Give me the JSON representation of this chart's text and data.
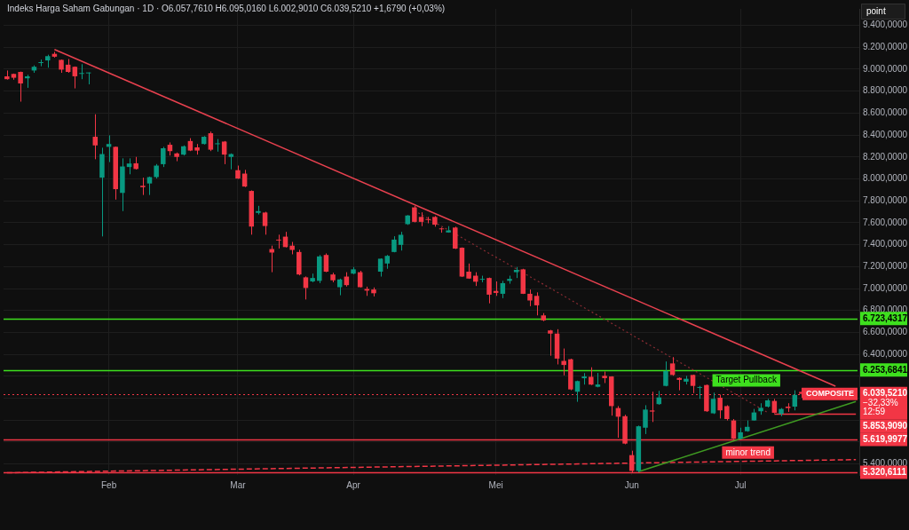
{
  "chart_data": {
    "type": "candlestick",
    "title": "Indeks Harga Saham Gabungan · 1D · O6.057,7610 H6.095,0160 L6.002,9010 C6.039,5210 +1,6790 (+0,03%)",
    "categories": [
      null,
      null,
      null,
      null,
      null,
      null,
      null,
      null,
      null,
      null,
      null,
      null,
      null,
      null,
      null,
      "Feb",
      null,
      null,
      null,
      null,
      null,
      null,
      null,
      null,
      null,
      null,
      null,
      null,
      null,
      null,
      null,
      null,
      null,
      null,
      "Mar",
      null,
      null,
      null,
      null,
      null,
      null,
      null,
      null,
      null,
      null,
      null,
      null,
      null,
      null,
      null,
      null,
      "Apr",
      null,
      null,
      null,
      null,
      null,
      null,
      null,
      null,
      null,
      null,
      null,
      null,
      null,
      null,
      null,
      null,
      null,
      null,
      null,
      null,
      "Mei",
      null,
      null,
      null,
      null,
      null,
      null,
      null,
      null,
      null,
      null,
      null,
      null,
      null,
      null,
      null,
      null,
      null,
      null,
      null,
      "Jun",
      null,
      null,
      null,
      null,
      null,
      null,
      null,
      null,
      null,
      null,
      null,
      null,
      null,
      null,
      null,
      "Jul",
      null,
      null,
      null,
      null,
      null,
      null,
      null,
      null,
      null,
      null,
      null,
      null,
      null,
      null,
      null,
      null,
      null
    ],
    "ohlc": [
      [
        8935,
        8988,
        8905,
        8909
      ],
      [
        8957,
        8960,
        8904,
        8922
      ],
      [
        8975,
        8978,
        8704,
        8870
      ],
      [
        8917,
        8949,
        8830,
        8935
      ],
      [
        8988,
        9035,
        8967,
        9022
      ],
      [
        9056,
        9088,
        9027,
        9062
      ],
      [
        9080,
        9132,
        9014,
        9119
      ],
      [
        9140,
        9158,
        9106,
        9114
      ],
      [
        9085,
        9088,
        8967,
        8996
      ],
      [
        9041,
        9093,
        8967,
        8975
      ],
      [
        9022,
        9025,
        8825,
        8935
      ],
      [
        8957,
        9046,
        8909,
        8962
      ],
      [
        8962,
        8970,
        8862,
        8967
      ],
      [
        8384,
        8589,
        8179,
        8305
      ],
      [
        8011,
        8284,
        7475,
        8226
      ],
      [
        8292,
        8397,
        8153,
        8318
      ],
      [
        8292,
        8295,
        7811,
        7906
      ],
      [
        7872,
        8187,
        7706,
        8113
      ],
      [
        8108,
        8187,
        8042,
        8140
      ],
      [
        8142,
        8200,
        8085,
        8090
      ],
      [
        7937,
        8011,
        7853,
        7924
      ],
      [
        7958,
        8021,
        7853,
        8016
      ],
      [
        8016,
        8135,
        8003,
        8121
      ],
      [
        8134,
        8292,
        8108,
        8279
      ],
      [
        8311,
        8332,
        8213,
        8253
      ],
      [
        8232,
        8240,
        8161,
        8200
      ],
      [
        8221,
        8305,
        8213,
        8297
      ],
      [
        8345,
        8371,
        8253,
        8258
      ],
      [
        8287,
        8318,
        8221,
        8258
      ],
      [
        8318,
        8390,
        8313,
        8384
      ],
      [
        8416,
        8431,
        8253,
        8266
      ],
      [
        8316,
        8363,
        8248,
        8320
      ],
      [
        8340,
        8345,
        8134,
        8221
      ],
      [
        8200,
        8232,
        8087,
        8226
      ],
      [
        8079,
        8121,
        8000,
        8003
      ],
      [
        8048,
        8082,
        7925,
        7930
      ],
      [
        7890,
        7895,
        7491,
        7565
      ],
      [
        7690,
        7754,
        7675,
        7706
      ],
      [
        7693,
        7700,
        7491,
        7570
      ],
      [
        7360,
        7391,
        7149,
        7328
      ],
      [
        7441,
        7491,
        7365,
        7438
      ],
      [
        7473,
        7517,
        7375,
        7378
      ],
      [
        7391,
        7425,
        7312,
        7352
      ],
      [
        7333,
        7354,
        7120,
        7128
      ],
      [
        7102,
        7110,
        6900,
        7005
      ],
      [
        7065,
        7136,
        7057,
        7096
      ],
      [
        7070,
        7306,
        7049,
        7293
      ],
      [
        7306,
        7320,
        7149,
        7154
      ],
      [
        7128,
        7144,
        7057,
        7075
      ],
      [
        7012,
        7090,
        6939,
        7083
      ],
      [
        7109,
        7149,
        7018,
        7031
      ],
      [
        7136,
        7196,
        7130,
        7175
      ],
      [
        7149,
        7162,
        7010,
        7012
      ],
      [
        6996,
        7017,
        6933,
        6981
      ],
      [
        6991,
        7010,
        6928,
        6957
      ],
      [
        7154,
        7275,
        7109,
        7272
      ],
      [
        7228,
        7306,
        7180,
        7298
      ],
      [
        7333,
        7477,
        7330,
        7446
      ],
      [
        7398,
        7517,
        7346,
        7490
      ],
      [
        7587,
        7670,
        7580,
        7666
      ],
      [
        7740,
        7753,
        7603,
        7608
      ],
      [
        7653,
        7695,
        7569,
        7608
      ],
      [
        7630,
        7653,
        7595,
        7625
      ],
      [
        7653,
        7661,
        7564,
        7582
      ],
      [
        7545,
        7556,
        7509,
        7540
      ],
      [
        7511,
        7569,
        7509,
        7530
      ],
      [
        7556,
        7564,
        7360,
        7364
      ],
      [
        7372,
        7375,
        7105,
        7109
      ],
      [
        7154,
        7228,
        7088,
        7091
      ],
      [
        7117,
        7149,
        7023,
        7062
      ],
      [
        7080,
        7117,
        7057,
        7088
      ],
      [
        7096,
        7100,
        6865,
        6944
      ],
      [
        6978,
        7065,
        6933,
        6960
      ],
      [
        6952,
        7070,
        6912,
        7049
      ],
      [
        7070,
        7117,
        7044,
        7088
      ],
      [
        7149,
        7196,
        7096,
        7170
      ],
      [
        7175,
        7180,
        6950,
        6952
      ],
      [
        6952,
        6991,
        6839,
        6891
      ],
      [
        6933,
        6965,
        6755,
        6847
      ],
      [
        6755,
        6776,
        6702,
        6710
      ],
      [
        6618,
        6623,
        6387,
        6589
      ],
      [
        6589,
        6629,
        6308,
        6361
      ],
      [
        6340,
        6453,
        6208,
        6303
      ],
      [
        6355,
        6360,
        6072,
        6080
      ],
      [
        6059,
        6160,
        5967,
        6156
      ],
      [
        6182,
        6229,
        6124,
        6198
      ],
      [
        6195,
        6282,
        6120,
        6124
      ],
      [
        6104,
        6230,
        6099,
        6125
      ],
      [
        6204,
        6243,
        6138,
        6183
      ],
      [
        6198,
        6200,
        5841,
        5928
      ],
      [
        5910,
        5928,
        5639,
        5831
      ],
      [
        5836,
        5849,
        5580,
        5586
      ],
      [
        5481,
        5521,
        5324,
        5337
      ],
      [
        5337,
        5750,
        5324,
        5744
      ],
      [
        5731,
        5936,
        5673,
        5896
      ],
      [
        5888,
        6059,
        5783,
        5878
      ],
      [
        5946,
        6067,
        5940,
        6007
      ],
      [
        6112,
        6335,
        6108,
        6248
      ],
      [
        6317,
        6375,
        6205,
        6212
      ],
      [
        6185,
        6190,
        6072,
        6167
      ],
      [
        6151,
        6204,
        6125,
        6177
      ],
      [
        6212,
        6215,
        6046,
        6112
      ],
      [
        6094,
        6112,
        5994,
        6099
      ],
      [
        6120,
        6125,
        5875,
        5881
      ],
      [
        5862,
        6051,
        5856,
        5994
      ],
      [
        6004,
        6033,
        5815,
        5889
      ],
      [
        5928,
        5936,
        5797,
        5810
      ],
      [
        5797,
        5810,
        5626,
        5631
      ],
      [
        5631,
        5731,
        5626,
        5689
      ],
      [
        5699,
        5797,
        5694,
        5739
      ],
      [
        5797,
        5902,
        5795,
        5870
      ],
      [
        5881,
        5954,
        5849,
        5912
      ],
      [
        5923,
        5994,
        5915,
        5980
      ],
      [
        5975,
        5994,
        5862,
        5867
      ],
      [
        5857,
        5910,
        5836,
        5902
      ],
      [
        5923,
        5954,
        5875,
        5910
      ],
      [
        5923,
        6072,
        5889,
        6030
      ],
      [
        6057.761,
        6095.016,
        6002.901,
        6039.521
      ],
      null,
      null,
      null,
      null,
      null,
      null,
      null,
      null
    ],
    "series": [
      {
        "type": "line",
        "color": "#e8414f",
        "values": [
          null,
          null,
          null,
          null,
          null,
          null,
          null,
          9180,
          null,
          null,
          null,
          null,
          null,
          null,
          null,
          null,
          null,
          null,
          null,
          null,
          null,
          null,
          null,
          null,
          null,
          null,
          null,
          null,
          null,
          null,
          null,
          null,
          null,
          null,
          null,
          null,
          null,
          null,
          null,
          null,
          null,
          null,
          null,
          null,
          null,
          null,
          null,
          null,
          null,
          null,
          null,
          null,
          null,
          null,
          null,
          null,
          null,
          null,
          null,
          null,
          null,
          null,
          null,
          null,
          null,
          null,
          null,
          null,
          null,
          null,
          null,
          null,
          null,
          null,
          null,
          null,
          null,
          null,
          null,
          null,
          null,
          null,
          null,
          null,
          null,
          null,
          null,
          null,
          null,
          null,
          null,
          null,
          null,
          null,
          null,
          null,
          null,
          null,
          null,
          null,
          null,
          null,
          null,
          null,
          null,
          null,
          null,
          null,
          null,
          null,
          null,
          null,
          null,
          null,
          null,
          null,
          null,
          null,
          null,
          null,
          null,
          null,
          6110,
          null,
          null,
          null
        ]
      },
      {
        "type": "line",
        "color": "#8a2c33",
        "line_style": "dotted",
        "values": [
          null,
          null,
          null,
          null,
          null,
          null,
          null,
          null,
          null,
          null,
          null,
          null,
          null,
          null,
          null,
          null,
          null,
          null,
          null,
          null,
          null,
          null,
          null,
          null,
          null,
          null,
          null,
          null,
          null,
          null,
          null,
          null,
          null,
          null,
          null,
          null,
          null,
          null,
          null,
          null,
          null,
          null,
          null,
          null,
          null,
          null,
          null,
          null,
          null,
          null,
          null,
          null,
          null,
          null,
          null,
          null,
          null,
          null,
          null,
          null,
          7710,
          null,
          null,
          null,
          null,
          null,
          null,
          null,
          null,
          null,
          null,
          null,
          null,
          null,
          null,
          null,
          null,
          null,
          null,
          null,
          null,
          null,
          null,
          null,
          null,
          null,
          null,
          null,
          null,
          null,
          null,
          null,
          null,
          null,
          null,
          null,
          null,
          null,
          null,
          null,
          null,
          null,
          null,
          null,
          null,
          null,
          null,
          null,
          null,
          null,
          null,
          null,
          5870,
          null,
          null,
          null,
          null,
          null,
          null,
          null,
          null,
          null,
          null,
          null,
          null,
          null
        ]
      },
      {
        "type": "line",
        "color": "#3f9a22",
        "values": [
          null,
          null,
          null,
          null,
          null,
          null,
          null,
          null,
          null,
          null,
          null,
          null,
          null,
          null,
          null,
          null,
          null,
          null,
          null,
          null,
          null,
          null,
          null,
          null,
          null,
          null,
          null,
          null,
          null,
          null,
          null,
          null,
          null,
          null,
          null,
          null,
          null,
          null,
          null,
          null,
          null,
          null,
          null,
          null,
          null,
          null,
          null,
          null,
          null,
          null,
          null,
          null,
          null,
          null,
          null,
          null,
          null,
          null,
          null,
          null,
          null,
          null,
          null,
          null,
          null,
          null,
          null,
          null,
          null,
          null,
          null,
          null,
          null,
          null,
          null,
          null,
          null,
          null,
          null,
          null,
          null,
          null,
          null,
          null,
          null,
          null,
          null,
          null,
          null,
          null,
          null,
          null,
          null,
          5330,
          null,
          null,
          null,
          null,
          null,
          null,
          null,
          null,
          null,
          null,
          null,
          null,
          null,
          null,
          null,
          null,
          null,
          null,
          null,
          null,
          null,
          null,
          null,
          null,
          null,
          null,
          null,
          null,
          null,
          null,
          null,
          5970
        ]
      },
      {
        "type": "line",
        "color": "#f23645",
        "line_style": "dashed",
        "values": [
          5320,
          null,
          null,
          null,
          null,
          null,
          null,
          null,
          null,
          null,
          null,
          null,
          null,
          null,
          null,
          null,
          null,
          null,
          null,
          null,
          null,
          null,
          null,
          null,
          null,
          null,
          null,
          null,
          null,
          null,
          null,
          null,
          null,
          null,
          null,
          null,
          null,
          null,
          null,
          null,
          null,
          null,
          null,
          null,
          null,
          null,
          null,
          null,
          null,
          null,
          null,
          null,
          null,
          null,
          null,
          null,
          null,
          null,
          null,
          null,
          null,
          null,
          null,
          null,
          null,
          null,
          null,
          null,
          null,
          null,
          null,
          null,
          null,
          null,
          null,
          null,
          null,
          null,
          null,
          null,
          null,
          null,
          null,
          null,
          null,
          null,
          null,
          null,
          null,
          null,
          null,
          null,
          null,
          null,
          null,
          null,
          null,
          null,
          null,
          null,
          null,
          null,
          null,
          null,
          null,
          null,
          null,
          null,
          null,
          null,
          null,
          null,
          null,
          null,
          null,
          null,
          null,
          null,
          null,
          null,
          null,
          null,
          null,
          null,
          null,
          5440
        ]
      },
      {
        "type": "line",
        "color": "#f23645",
        "values": [
          null,
          null,
          null,
          null,
          null,
          null,
          null,
          null,
          null,
          null,
          null,
          null,
          null,
          null,
          null,
          null,
          null,
          null,
          null,
          null,
          null,
          null,
          null,
          null,
          null,
          null,
          null,
          null,
          null,
          null,
          null,
          null,
          null,
          null,
          null,
          null,
          null,
          null,
          null,
          null,
          null,
          null,
          null,
          null,
          null,
          null,
          null,
          null,
          null,
          null,
          null,
          null,
          null,
          null,
          null,
          null,
          null,
          null,
          null,
          null,
          null,
          null,
          null,
          null,
          null,
          null,
          null,
          null,
          null,
          null,
          null,
          null,
          null,
          null,
          null,
          null,
          null,
          null,
          null,
          null,
          null,
          null,
          null,
          null,
          null,
          null,
          null,
          null,
          null,
          null,
          null,
          null,
          null,
          null,
          null,
          null,
          null,
          null,
          null,
          null,
          null,
          null,
          null,
          null,
          null,
          null,
          null,
          null,
          null,
          null,
          null,
          null,
          null,
          5853.909,
          5853.909,
          5853.909,
          5853.909,
          5853.909,
          5853.909,
          5853.909,
          5853.909,
          5853.909,
          5853.909,
          5853.909,
          5853.909,
          5853.909
        ]
      }
    ],
    "ylim": [
      5300,
      9550
    ],
    "yticks": [
      {
        "value": 5400,
        "label": "5.400,0000"
      },
      {
        "value": 5600,
        "label": null
      },
      {
        "value": 5800,
        "label": null
      },
      {
        "value": 6000,
        "label": null
      },
      {
        "value": 6200,
        "label": null
      },
      {
        "value": 6400,
        "label": "6.400,0000"
      },
      {
        "value": 6600,
        "label": "6.600,0000"
      },
      {
        "value": 6800,
        "label": "6.800,0000"
      },
      {
        "value": 7000,
        "label": "7.000,0000"
      },
      {
        "value": 7200,
        "label": "7.200,0000"
      },
      {
        "value": 7400,
        "label": "7.400,0000"
      },
      {
        "value": 7600,
        "label": "7.600,0000"
      },
      {
        "value": 7800,
        "label": "7.800,0000"
      },
      {
        "value": 8000,
        "label": "8.000,0000"
      },
      {
        "value": 8200,
        "label": "8.200,0000"
      },
      {
        "value": 8400,
        "label": "8.400,0000"
      },
      {
        "value": 8600,
        "label": "8.600,0000"
      },
      {
        "value": 8800,
        "label": "8.800,0000"
      },
      {
        "value": 9000,
        "label": "9.000,0000"
      },
      {
        "value": 9200,
        "label": "9.200,0000"
      },
      {
        "value": 9400,
        "label": "9.400,0000"
      }
    ],
    "grid": true,
    "ref_lines": [
      {
        "axis": "y",
        "value": 6723.4317,
        "label": "6.723,4317",
        "color": "#3ee01e"
      },
      {
        "axis": "y",
        "value": 6253.6841,
        "label": "6.253,6841",
        "color": "#3ee01e"
      },
      {
        "axis": "y",
        "value": 5619.9977,
        "label": "5.619,9977",
        "color": "#f23645"
      },
      {
        "axis": "y",
        "value": 5320.6111,
        "label": "5.320,6111",
        "color": "#f23645"
      },
      {
        "axis": "y",
        "value": 6039.521,
        "label": "6.039,5210",
        "color": "#f23645",
        "line_style": "dotted"
      }
    ],
    "annotations": [
      "Target Pullback",
      "minor trend",
      "COMPOSITE",
      "−32,33%",
      "12:59",
      "point",
      "5.853,9090"
    ]
  }
}
